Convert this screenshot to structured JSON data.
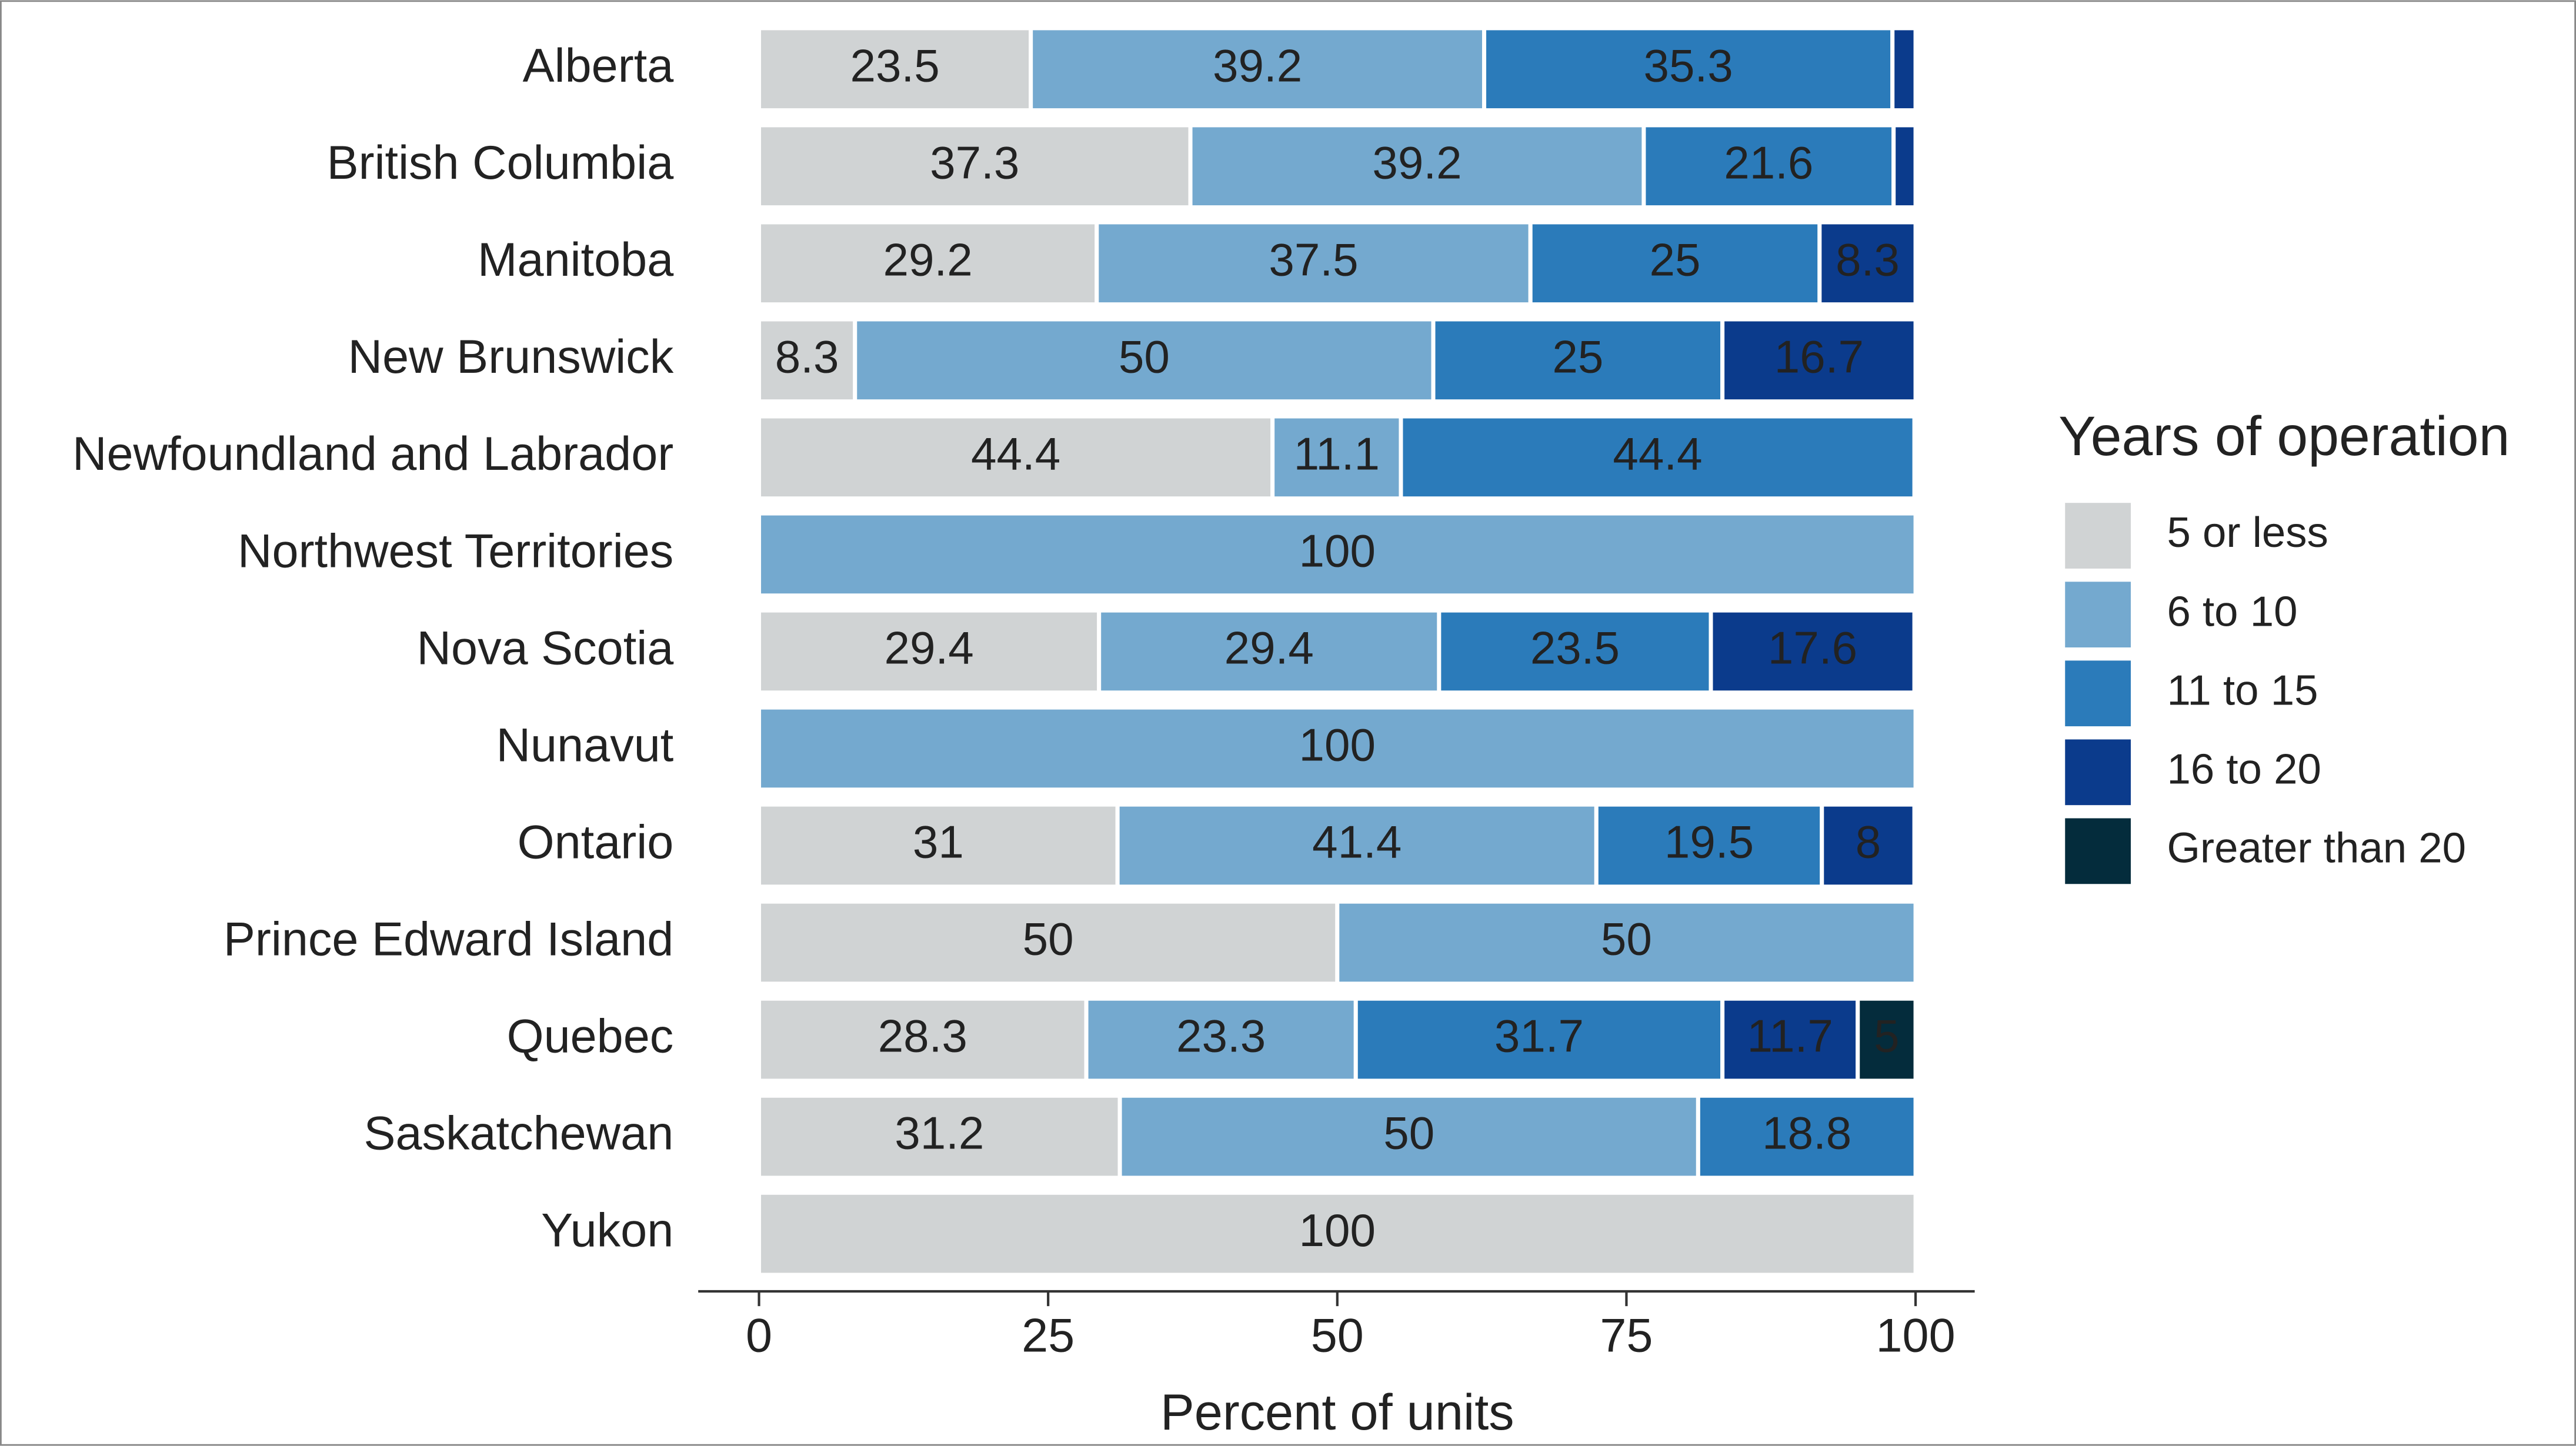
{
  "chart_data": {
    "type": "stacked-bar-horizontal",
    "categories": [
      "Alberta",
      "British Columbia",
      "Manitoba",
      "New Brunswick",
      "Newfoundland and Labrador",
      "Northwest Territories",
      "Nova Scotia",
      "Nunavut",
      "Ontario",
      "Prince Edward Island",
      "Quebec",
      "Saskatchewan",
      "Yukon"
    ],
    "series": [
      {
        "name": "5 or less",
        "color": "#d0d3d4",
        "values": [
          23.5,
          37.3,
          29.2,
          8.3,
          44.4,
          null,
          29.4,
          null,
          31,
          50,
          28.3,
          31.2,
          100
        ]
      },
      {
        "name": "6 to 10",
        "color": "#74a9cf",
        "values": [
          39.2,
          39.2,
          37.5,
          50,
          11.1,
          100,
          29.4,
          100,
          41.4,
          50,
          23.3,
          50,
          null
        ]
      },
      {
        "name": "11 to 15",
        "color": "#2b7bba",
        "values": [
          35.3,
          21.6,
          25,
          25,
          44.4,
          null,
          23.5,
          null,
          19.5,
          null,
          31.7,
          18.8,
          null
        ]
      },
      {
        "name": "16 to 20",
        "color": "#0b3b8c",
        "values": [
          2,
          1.9,
          8.3,
          16.7,
          null,
          null,
          17.6,
          null,
          8,
          null,
          11.7,
          null,
          null
        ]
      },
      {
        "name": "Greater than 20",
        "color": "#042c3c",
        "values": [
          null,
          null,
          null,
          null,
          null,
          null,
          null,
          null,
          null,
          null,
          5,
          null,
          null
        ]
      }
    ],
    "xlabel": "Percent of units",
    "xlim": [
      0,
      100
    ],
    "xticks": [
      0,
      25,
      50,
      75,
      100
    ],
    "legend_title": "Years of operation",
    "legend": "right"
  }
}
